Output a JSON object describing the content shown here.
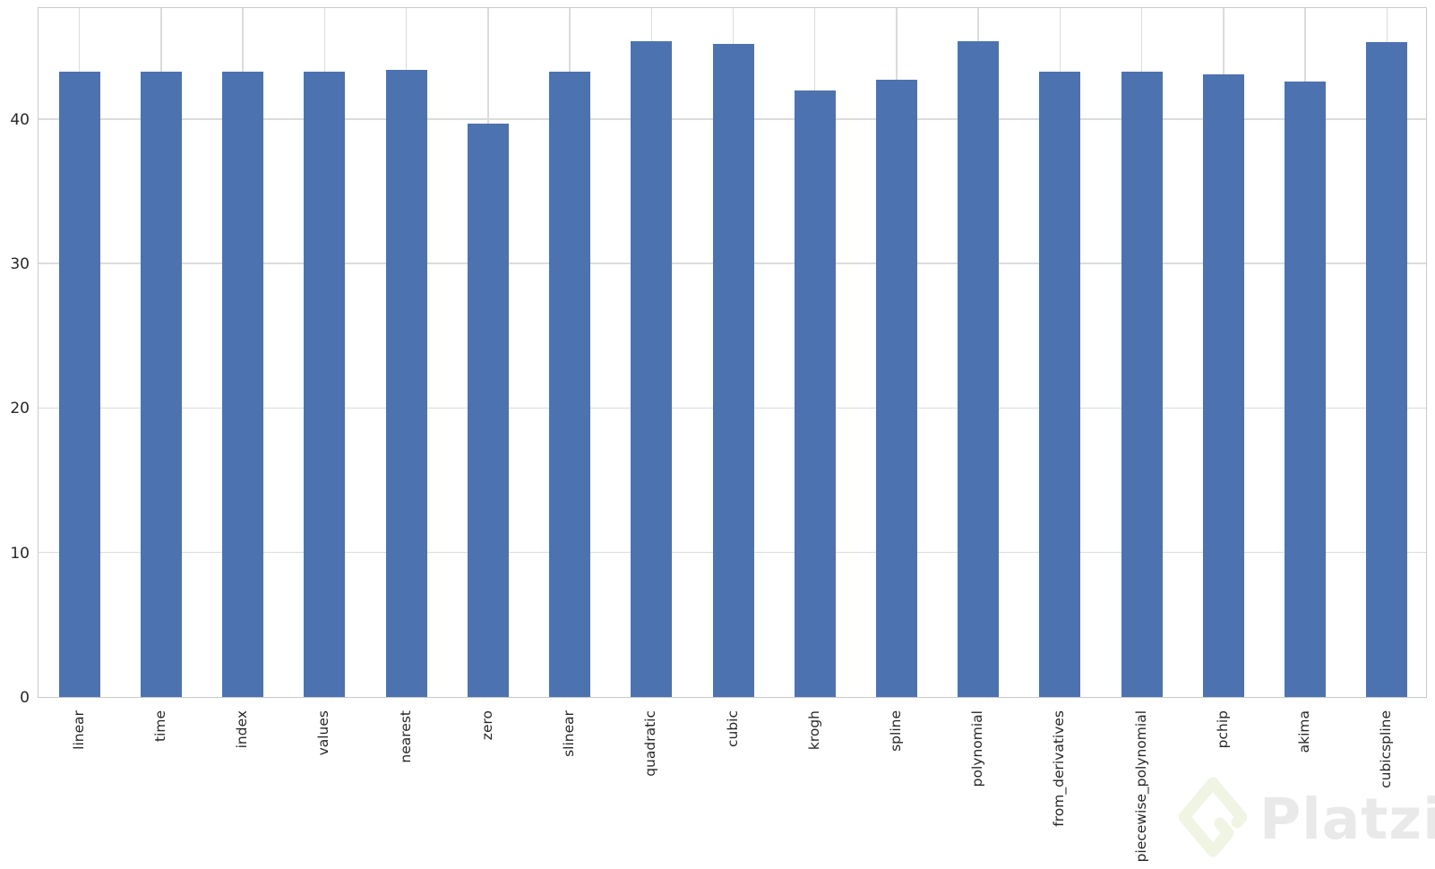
{
  "chart_data": {
    "type": "bar",
    "title": "",
    "xlabel": "",
    "ylabel": "",
    "categories": [
      "linear",
      "time",
      "index",
      "values",
      "nearest",
      "zero",
      "slinear",
      "quadratic",
      "cubic",
      "krogh",
      "spline",
      "polynomial",
      "from_derivatives",
      "piecewise_polynomial",
      "pchip",
      "akima",
      "cubicspline"
    ],
    "values": [
      43.3,
      43.3,
      43.3,
      43.3,
      43.4,
      39.7,
      43.3,
      45.4,
      45.2,
      42.0,
      42.7,
      45.4,
      43.3,
      43.3,
      43.1,
      42.6,
      45.3
    ],
    "yticks": [
      0,
      10,
      20,
      30,
      40
    ],
    "ylim": [
      0,
      47.8
    ],
    "grid": true,
    "legend": false,
    "bar_color": "#4c72b0",
    "grid_color": "#dbdbdb",
    "spine_color": "#c9c9c9",
    "tick_label_color": "#262626"
  },
  "watermark": {
    "brand": "Platzi",
    "logo_icon": "platzi-diamond-logo",
    "logo_color": "#f0f4e3",
    "text_color": "#e9e9e9"
  }
}
